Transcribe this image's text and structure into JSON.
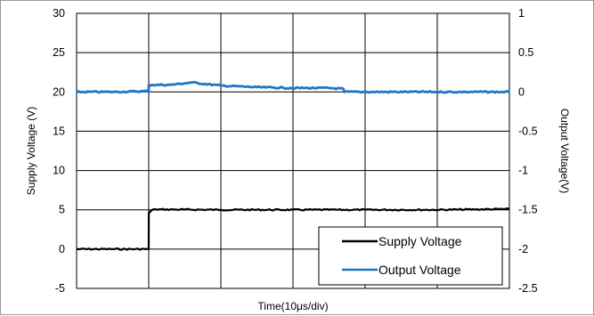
{
  "chart_data": {
    "type": "line",
    "xlabel": "Time(10μs/div)",
    "ylabel_left": "Supply Voltage (V)",
    "ylabel_right": "Output Voltage(V)",
    "ylim_left": [
      -5,
      30
    ],
    "ylim_right": [
      -2.5,
      1
    ],
    "yticks_left": [
      "-5",
      "0",
      "5",
      "10",
      "15",
      "20",
      "25",
      "30"
    ],
    "yticks_right": [
      "-2.5",
      "-2",
      "-1.5",
      "-1",
      "-0.5",
      "0",
      "0.5",
      "1"
    ],
    "x_divisions": 6,
    "x_unit": "10μs/div",
    "grid": true,
    "legend_position": "bottom-right",
    "series": [
      {
        "name": "Supply Voltage",
        "axis": "left",
        "color": "#000000",
        "x": [
          0,
          0.5,
          1.0,
          1.001,
          1.05,
          1.1,
          2,
          3,
          4,
          5,
          6
        ],
        "y": [
          0,
          0,
          0,
          4.6,
          5.0,
          5.05,
          5.0,
          5.0,
          5.0,
          5.0,
          5.1
        ]
      },
      {
        "name": "Output Voltage",
        "axis": "right",
        "color": "#1f77c4",
        "x": [
          0,
          0.5,
          1.0,
          1.001,
          1.3,
          1.6,
          2.0,
          2.5,
          3.0,
          3.5,
          3.7,
          3.71,
          4.0,
          5.0,
          6.0
        ],
        "y": [
          0.0,
          0.0,
          0.01,
          0.09,
          0.09,
          0.12,
          0.08,
          0.06,
          0.05,
          0.05,
          0.04,
          0.0,
          0.0,
          0.0,
          0.0
        ]
      }
    ]
  }
}
